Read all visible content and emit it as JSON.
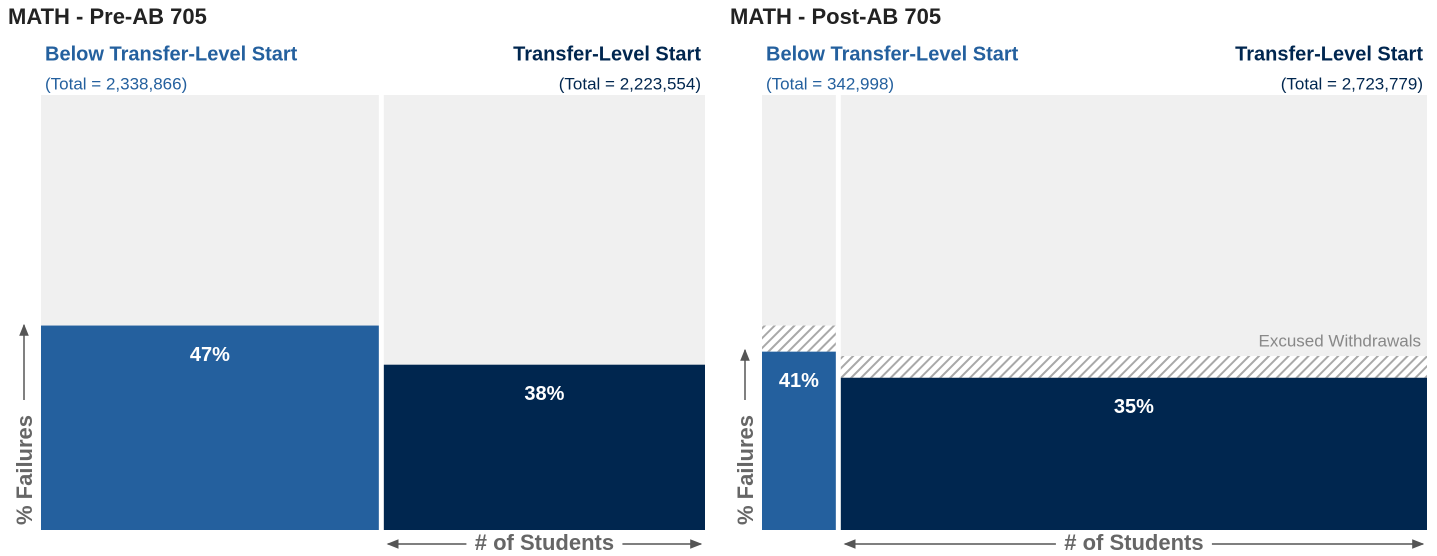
{
  "chart_data": [
    {
      "type": "mekko",
      "title": "MATH - Pre-AB 705",
      "y_label": "% Failures",
      "x_label": "# of Students",
      "ylim": [
        0,
        100
      ],
      "series": [
        {
          "name": "Below Transfer-Level Start",
          "color": "#24609e",
          "total": 2338866,
          "total_label": "(Total = 2,338,866)",
          "failure": 47,
          "failure_label": "47%"
        },
        {
          "name": "Transfer-Level Start",
          "color": "#00264f",
          "total": 2223554,
          "total_label": "(Total = 2,223,554)",
          "failure": 38,
          "failure_label": "38%"
        }
      ]
    },
    {
      "type": "mekko",
      "title": "MATH - Post-AB 705",
      "y_label": "% Failures",
      "x_label": "# of Students",
      "ylim": [
        0,
        100
      ],
      "annotation": "Excused Withdrawals",
      "series": [
        {
          "name": "Below Transfer-Level Start",
          "color": "#24609e",
          "total": 342998,
          "total_label": "(Total = 342,998)",
          "failure": 41,
          "failure_label": "41%",
          "withdrawal": 6
        },
        {
          "name": "Transfer-Level Start",
          "color": "#00264f",
          "total": 2723779,
          "total_label": "(Total = 2,723,779)",
          "failure": 35,
          "failure_label": "35%",
          "withdrawal": 5
        }
      ]
    }
  ]
}
